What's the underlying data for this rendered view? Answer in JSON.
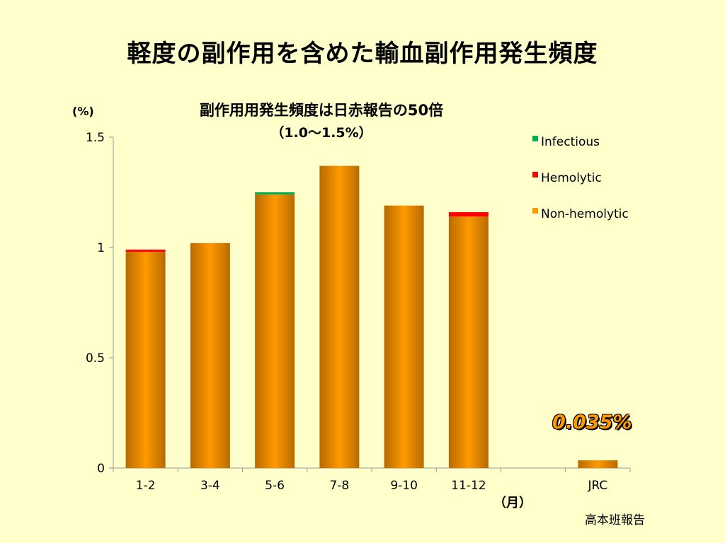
{
  "slide": {
    "title": "軽度の副作用を含めた輸血副作用発生頻度",
    "y_unit": "(%)",
    "x_unit": "（月）",
    "source_note": "高本班報告",
    "callout": "0.035%"
  },
  "colors": {
    "background": "#ffffcc",
    "non_hemolytic": "#ff9900",
    "hemolytic": "#ff0000",
    "infectious": "#00b050",
    "callout": "#ff9900"
  },
  "chart_data": {
    "type": "bar",
    "stacked": true,
    "title": "副作用用発生頻度は日赤報告の50倍",
    "subtitle": "（1.0～1.5%）",
    "categories": [
      "1-2",
      "3-4",
      "5-6",
      "7-8",
      "9-10",
      "11-12",
      "",
      "JRC"
    ],
    "series": [
      {
        "name": "Non-hemolytic",
        "color": "#ff9900",
        "values": [
          0.98,
          1.02,
          1.24,
          1.37,
          1.19,
          1.14,
          0,
          0.035
        ]
      },
      {
        "name": "Hemolytic",
        "color": "#ff0000",
        "values": [
          0.01,
          0,
          0,
          0,
          0,
          0.02,
          0,
          0
        ]
      },
      {
        "name": "Infectious",
        "color": "#00b050",
        "values": [
          0,
          0,
          0.01,
          0,
          0,
          0,
          0,
          0
        ]
      }
    ],
    "legend_order": [
      "Infectious",
      "Hemolytic",
      "Non-hemolytic"
    ],
    "ylim": [
      0,
      1.5
    ],
    "yticks": [
      "0",
      "0.5",
      "1",
      "1.5"
    ],
    "ytick_values": [
      0,
      0.5,
      1,
      1.5
    ],
    "legend_position": "top-right",
    "grid": false
  }
}
